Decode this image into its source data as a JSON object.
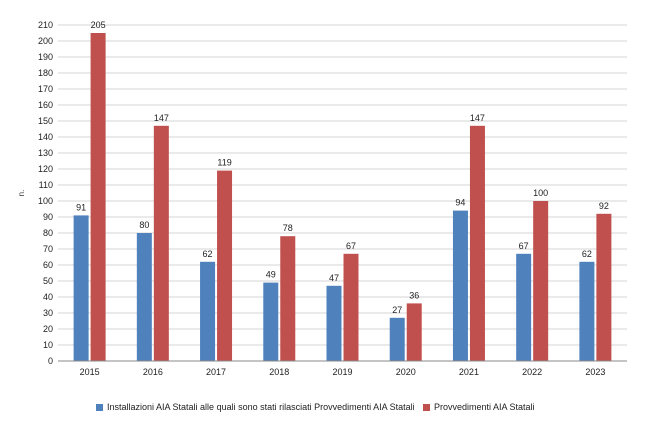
{
  "chart_data": {
    "type": "bar",
    "title": "",
    "xlabel": "",
    "ylabel": "n.",
    "ylim": [
      0,
      210
    ],
    "ytick_step": 10,
    "grid": true,
    "legend_position": "bottom",
    "categories": [
      "2015",
      "2016",
      "2017",
      "2018",
      "2019",
      "2020",
      "2021",
      "2022",
      "2023"
    ],
    "series": [
      {
        "name": "Installazioni AIA Statali alle quali sono stati rilasciati Provvedimenti AIA Statali",
        "color": "#4f81bd",
        "values": [
          91,
          80,
          62,
          49,
          47,
          27,
          94,
          67,
          62
        ]
      },
      {
        "name": "Provvedimenti AIA Statali",
        "color": "#c0504d",
        "values": [
          205,
          147,
          119,
          78,
          67,
          36,
          147,
          100,
          92
        ]
      }
    ]
  }
}
